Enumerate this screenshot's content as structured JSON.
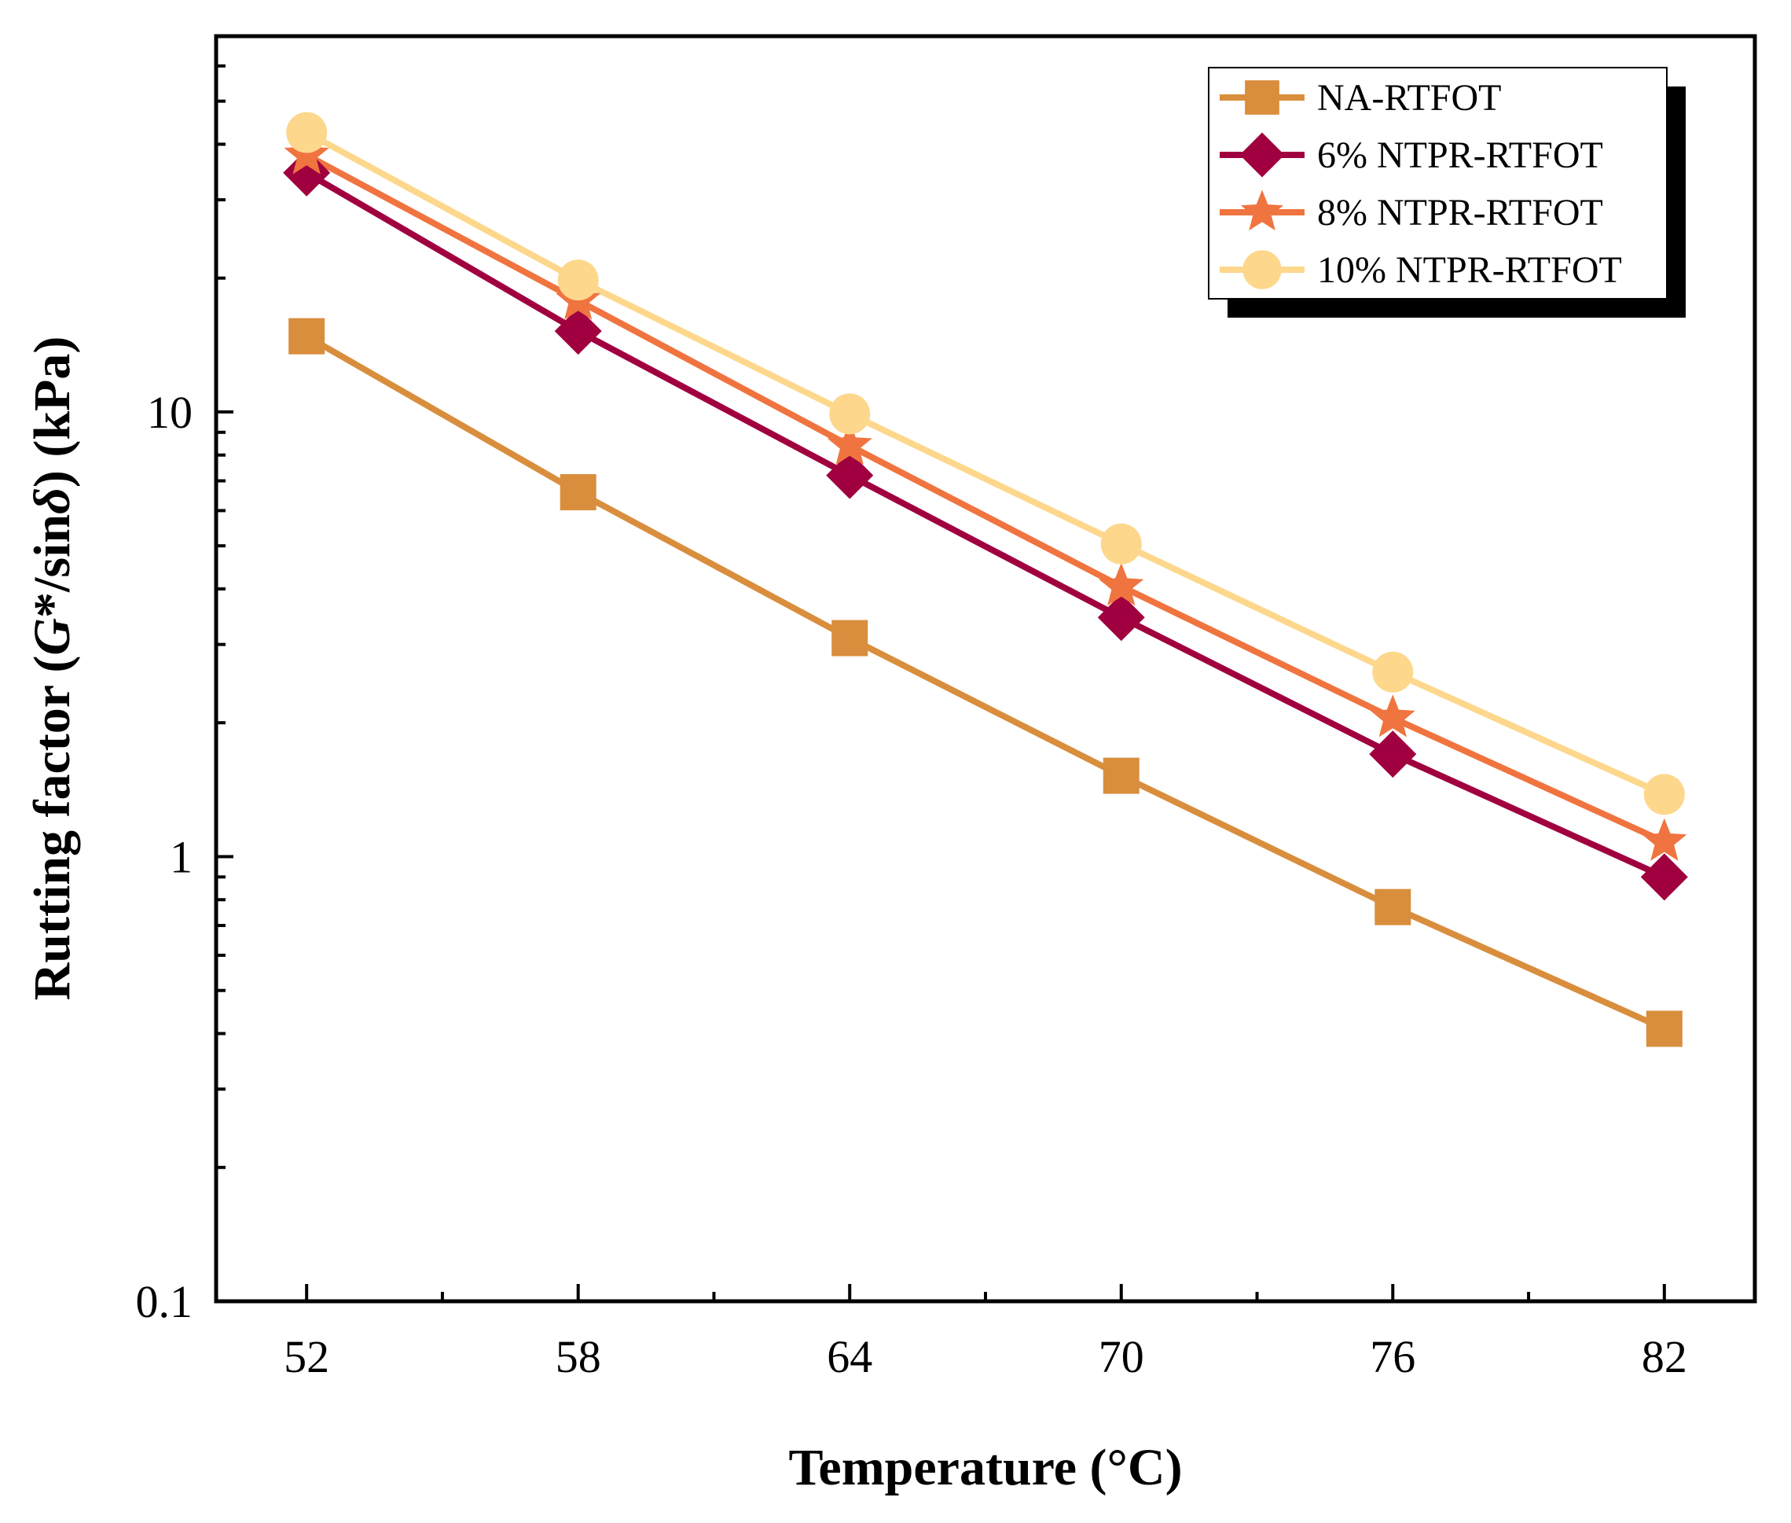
{
  "chart_data": {
    "type": "line",
    "xlabel": "Temperature (°C)",
    "ylabel_parts": {
      "prefix": "Rutting factor (",
      "g": "G",
      "mid": "*/sin",
      "delta": "δ",
      "suffix": ") (kPa)"
    },
    "x": [
      52,
      58,
      64,
      70,
      76,
      82
    ],
    "x_tick_labels": [
      "52",
      "58",
      "64",
      "70",
      "76",
      "82"
    ],
    "xlim": [
      50,
      84
    ],
    "y_scale": "log",
    "ylim": [
      0.1,
      70
    ],
    "y_tick_labels": [
      "0.1",
      "1",
      "10"
    ],
    "y_ticks": [
      0.1,
      1,
      10
    ],
    "grid": false,
    "legend_position": "top-right",
    "series": [
      {
        "name": "NA-RTFOT",
        "marker": "square",
        "color": "#D98E3D",
        "values": [
          14.8,
          6.6,
          3.1,
          1.52,
          0.77,
          0.41
        ]
      },
      {
        "name": "6% NTPR-RTFOT",
        "marker": "diamond",
        "color": "#A0003F",
        "values": [
          34.5,
          15.2,
          7.2,
          3.45,
          1.7,
          0.9
        ]
      },
      {
        "name": "8% NTPR-RTFOT",
        "marker": "star",
        "color": "#F0743F",
        "values": [
          37.8,
          17.8,
          8.4,
          4.05,
          2.05,
          1.08
        ]
      },
      {
        "name": "10% NTPR-RTFOT",
        "marker": "circle",
        "color": "#FDD78C",
        "values": [
          42.5,
          19.8,
          9.9,
          5.05,
          2.6,
          1.38
        ]
      }
    ]
  }
}
